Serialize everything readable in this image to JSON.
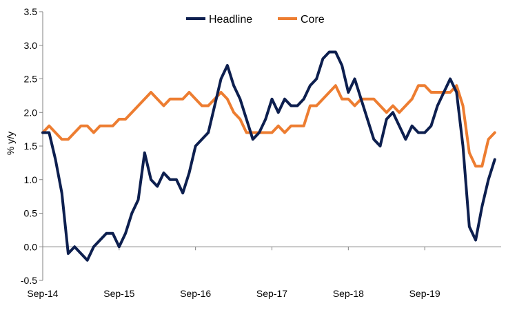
{
  "chart_data": {
    "type": "line",
    "title": "",
    "xlabel": "",
    "ylabel": "% y/y",
    "ylim": [
      -0.5,
      3.5
    ],
    "yticks": [
      -0.5,
      0.0,
      0.5,
      1.0,
      1.5,
      2.0,
      2.5,
      3.0,
      3.5
    ],
    "ytick_labels": [
      "-0.5",
      "0.0",
      "0.5",
      "1.0",
      "1.5",
      "2.0",
      "2.5",
      "3.0",
      "3.5"
    ],
    "xticks": [
      "Sep-14",
      "Sep-15",
      "Sep-16",
      "Sep-17",
      "Sep-18",
      "Sep-19"
    ],
    "x_start": "Sep-14",
    "x_end": "Sep-20",
    "grid": false,
    "legend": "top-center",
    "x": [
      "Sep-14",
      "Oct-14",
      "Nov-14",
      "Dec-14",
      "Jan-15",
      "Feb-15",
      "Mar-15",
      "Apr-15",
      "May-15",
      "Jun-15",
      "Jul-15",
      "Aug-15",
      "Sep-15",
      "Oct-15",
      "Nov-15",
      "Dec-15",
      "Jan-16",
      "Feb-16",
      "Mar-16",
      "Apr-16",
      "May-16",
      "Jun-16",
      "Jul-16",
      "Aug-16",
      "Sep-16",
      "Oct-16",
      "Nov-16",
      "Dec-16",
      "Jan-17",
      "Feb-17",
      "Mar-17",
      "Apr-17",
      "May-17",
      "Jun-17",
      "Jul-17",
      "Aug-17",
      "Sep-17",
      "Oct-17",
      "Nov-17",
      "Dec-17",
      "Jan-18",
      "Feb-18",
      "Mar-18",
      "Apr-18",
      "May-18",
      "Jun-18",
      "Jul-18",
      "Aug-18",
      "Sep-18",
      "Oct-18",
      "Nov-18",
      "Dec-18",
      "Jan-19",
      "Feb-19",
      "Mar-19",
      "Apr-19",
      "May-19",
      "Jun-19",
      "Jul-19",
      "Aug-19",
      "Sep-19",
      "Oct-19",
      "Nov-19",
      "Dec-19",
      "Jan-20",
      "Feb-20",
      "Mar-20",
      "Apr-20",
      "May-20",
      "Jun-20",
      "Jul-20",
      "Aug-20"
    ],
    "series": [
      {
        "name": "Headline",
        "color": "#0d1f4f",
        "values": [
          1.7,
          1.7,
          1.3,
          0.8,
          -0.1,
          0.0,
          -0.1,
          -0.2,
          0.0,
          0.1,
          0.2,
          0.2,
          0.0,
          0.2,
          0.5,
          0.7,
          1.4,
          1.0,
          0.9,
          1.1,
          1.0,
          1.0,
          0.8,
          1.1,
          1.5,
          1.6,
          1.7,
          2.1,
          2.5,
          2.7,
          2.4,
          2.2,
          1.9,
          1.6,
          1.7,
          1.9,
          2.2,
          2.0,
          2.2,
          2.1,
          2.1,
          2.2,
          2.4,
          2.5,
          2.8,
          2.9,
          2.9,
          2.7,
          2.3,
          2.5,
          2.2,
          1.9,
          1.6,
          1.5,
          1.9,
          2.0,
          1.8,
          1.6,
          1.8,
          1.7,
          1.7,
          1.8,
          2.1,
          2.3,
          2.5,
          2.3,
          1.5,
          0.3,
          0.1,
          0.6,
          1.0,
          1.3
        ]
      },
      {
        "name": "Core",
        "color": "#ed7d31",
        "values": [
          1.7,
          1.8,
          1.7,
          1.6,
          1.6,
          1.7,
          1.8,
          1.8,
          1.7,
          1.8,
          1.8,
          1.8,
          1.9,
          1.9,
          2.0,
          2.1,
          2.2,
          2.3,
          2.2,
          2.1,
          2.2,
          2.2,
          2.2,
          2.3,
          2.2,
          2.1,
          2.1,
          2.2,
          2.3,
          2.2,
          2.0,
          1.9,
          1.7,
          1.7,
          1.7,
          1.7,
          1.7,
          1.8,
          1.7,
          1.8,
          1.8,
          1.8,
          2.1,
          2.1,
          2.2,
          2.3,
          2.4,
          2.2,
          2.2,
          2.1,
          2.2,
          2.2,
          2.2,
          2.1,
          2.0,
          2.1,
          2.0,
          2.1,
          2.2,
          2.4,
          2.4,
          2.3,
          2.3,
          2.3,
          2.3,
          2.4,
          2.1,
          1.4,
          1.2,
          1.2,
          1.6,
          1.7
        ]
      }
    ]
  }
}
